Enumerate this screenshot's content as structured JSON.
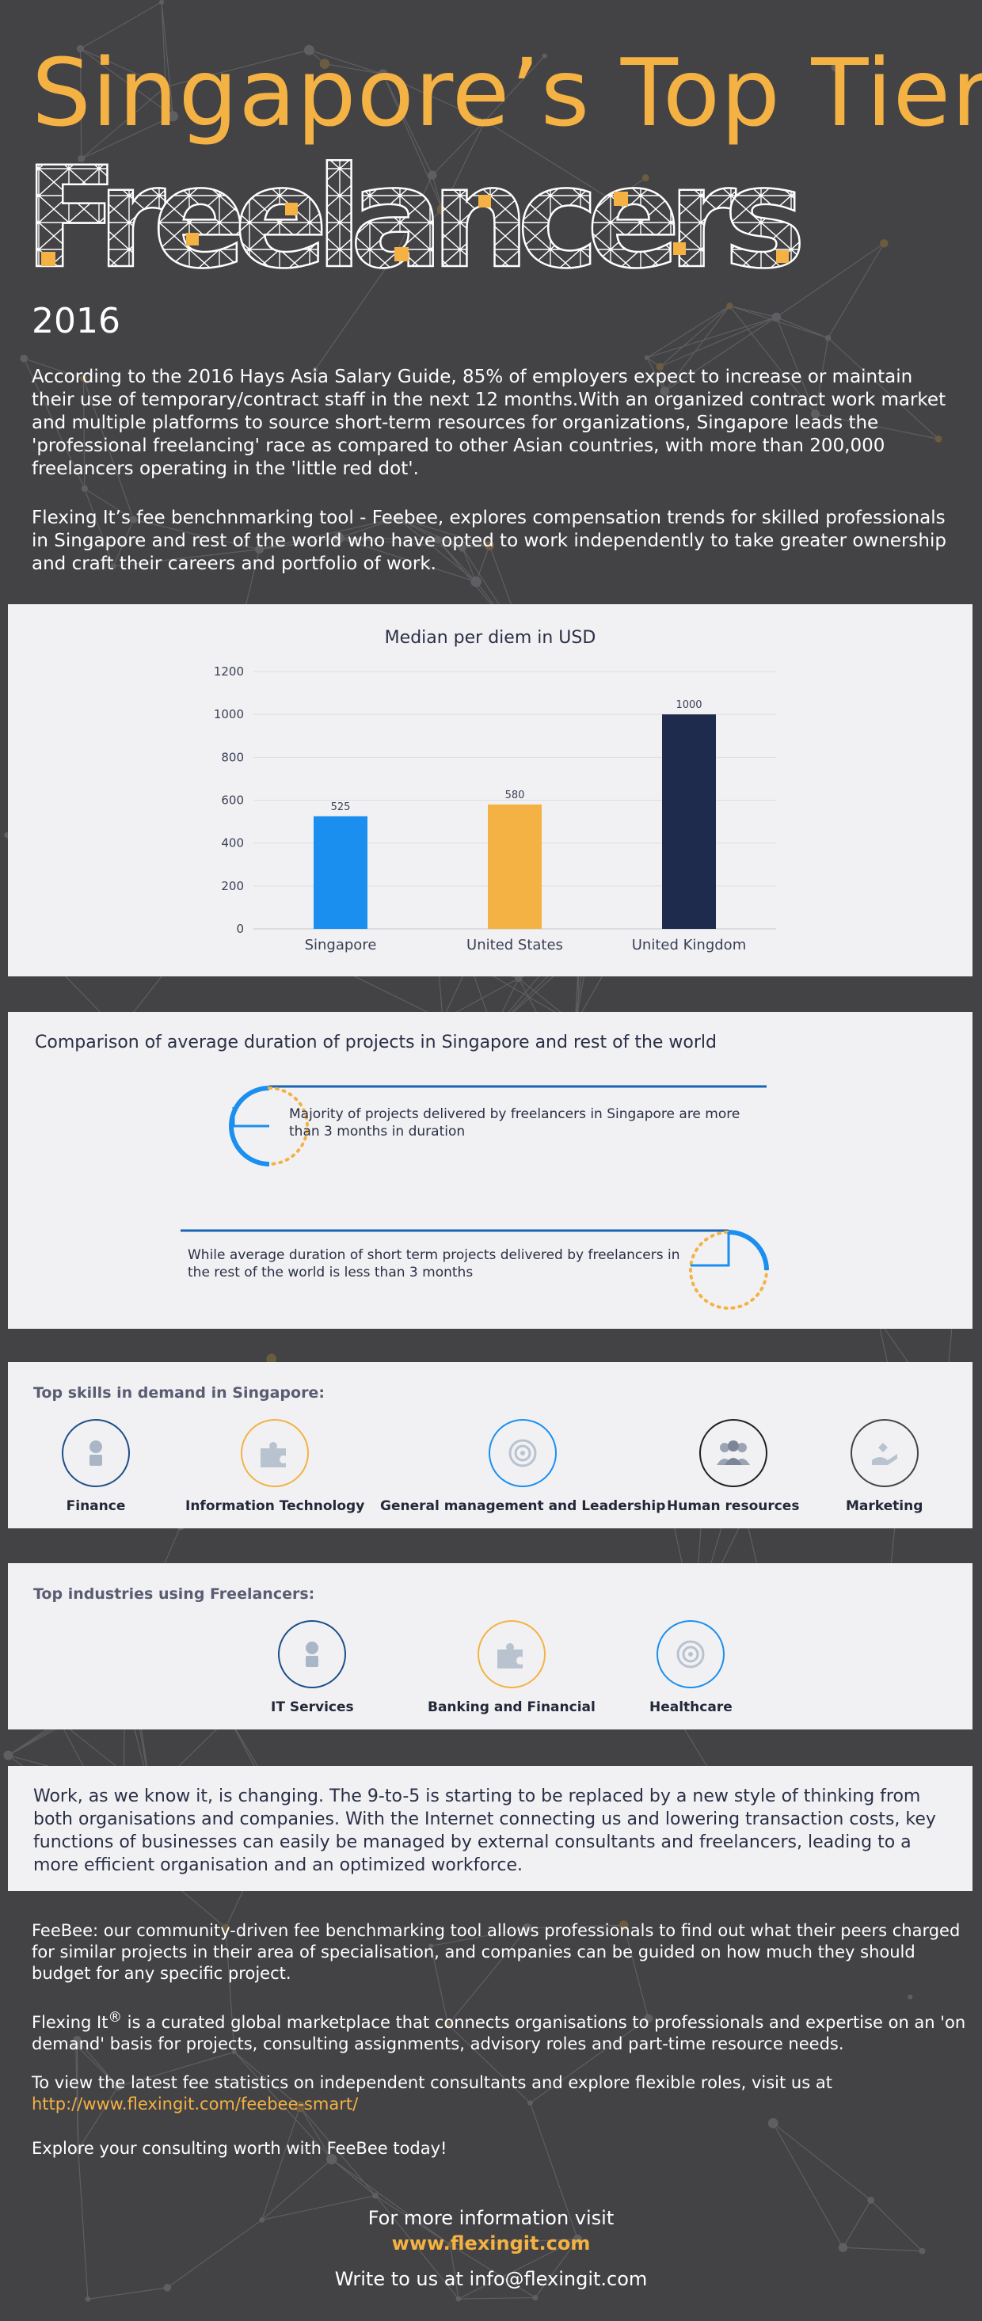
{
  "header": {
    "title_line1": "Singapore’s Top Tier",
    "title_line2": "Freelancers",
    "year": "2016"
  },
  "intro": {
    "p1": "According to the 2016 Hays Asia Salary Guide, 85% of employers expect to increase or maintain their use of temporary/contract staff in the next 12 months.With an organized contract work market and multiple platforms to source short-term resources for organizations, Singapore leads the 'professional freelancing' race as compared to other Asian countries, with more than 200,000 freelancers operating in the 'little red dot'.",
    "p2": "Flexing It’s fee benchnmarking tool - Feebee, explores compensation trends for skilled professionals in Singapore and rest of the world who have opted to work independently to take greater ownership and craft their careers and portfolio of work."
  },
  "chart_data": {
    "type": "bar",
    "title": "Median per diem in USD",
    "categories": [
      "Singapore",
      "United States",
      "United Kingdom"
    ],
    "values": [
      525,
      580,
      1000
    ],
    "data_labels": [
      "525",
      "580",
      "1000"
    ],
    "colors": [
      "#1a8ff0",
      "#f3b243",
      "#1f2b4d"
    ],
    "ylim": [
      0,
      1200
    ],
    "yticks": [
      0,
      200,
      400,
      600,
      800,
      1000,
      1200
    ],
    "ytick_labels": [
      "0",
      "200",
      "400",
      "600",
      "800",
      "1000",
      "1200"
    ],
    "grid": true,
    "xlabel": "",
    "ylabel": ""
  },
  "duration": {
    "title": "Comparison of average duration of projects in Singapore and rest of the world",
    "singapore_text": "Majority of projects delivered by freelancers in Singapore are more than 3 months in duration",
    "world_text": "While average duration of short term projects delivered by freelancers in the rest of the world is less than 3 months",
    "colors": {
      "blue": "#1a8ff0",
      "dark_blue": "#1664b5",
      "orange": "#f3b243"
    }
  },
  "skills": {
    "title": "Top skills in demand in Singapore:",
    "items": [
      {
        "label": "Finance",
        "icon": "finance-icon",
        "color": "#1d4f8a"
      },
      {
        "label": "Information Technology",
        "icon": "puzzle-icon",
        "color": "#f3b243"
      },
      {
        "label": "General management and Leadership",
        "icon": "target-icon",
        "color": "#1a8ff0"
      },
      {
        "label": "Human resources",
        "icon": "people-icon",
        "color": "#1f1f24"
      },
      {
        "label": "Marketing",
        "icon": "hand-icon",
        "color": "#444444"
      }
    ]
  },
  "industries": {
    "title": "Top industries using Freelancers:",
    "items": [
      {
        "label": "IT Services",
        "icon": "finance-icon",
        "color": "#1d4f8a"
      },
      {
        "label": "Banking and Financial",
        "icon": "puzzle-icon",
        "color": "#f3b243"
      },
      {
        "label": "Healthcare",
        "icon": "target-icon",
        "color": "#1a8ff0"
      }
    ]
  },
  "work": {
    "text": "Work, as we know it, is changing. The 9-to-5 is starting to be replaced by a new style of thinking from both organisations and companies. With the Internet connecting us and lowering transaction costs, key functions of businesses can easily be managed by external consultants and freelancers, leading to a more efficient organisation and an optimized workforce."
  },
  "outro": {
    "feebee": "FeeBee: our community-driven fee benchmarking tool allows professionals to find out  what their peers charged for similar projects in their area of specialisation, and companies can be guided on how much they should budget for any specific project.",
    "flexing_name": "Flexing It",
    "flexing_mark": "®",
    "flexing_rest": " is a curated global marketplace that connects organisations to professionals and expertise on an 'on demand' basis for projects, consulting assignments, advisory roles and part-time resource needs.",
    "visit_text": "To view the latest fee statistics on independent consultants and explore flexible roles, visit us at",
    "visit_link": "http://www.flexingit.com/feebee-smart/",
    "explore": "Explore your consulting worth with FeeBee today!"
  },
  "footer": {
    "more_info": "For more information visit",
    "website": "www.flexingit.com",
    "write": "Write to us at info@flexingit.com"
  },
  "colors": {
    "background": "#434245",
    "accent": "#f3b243",
    "panel": "#f1f1f4",
    "text_dark": "#2a2f45"
  }
}
